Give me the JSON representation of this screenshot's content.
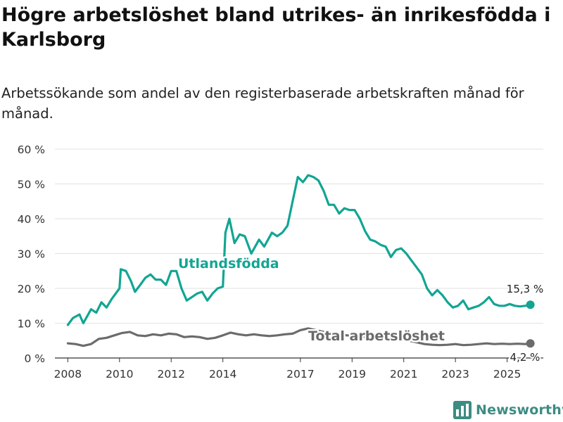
{
  "title": "Högre arbetslöshet bland utrikes- än inrikesfödda i Karlsborg",
  "subtitle": "Arbetssökande som andel av den registerbaserade arbetskraften månad för månad.",
  "brand": {
    "name": "Newsworthy",
    "icon": "bar-chart-logo-icon"
  },
  "colors": {
    "foreign_born": "#12a593",
    "total": "#6b6b6b",
    "grid": "#e2e2e2",
    "text": "#222222"
  },
  "chart_data": {
    "type": "line",
    "title": "Högre arbetslöshet bland utrikes- än inrikesfödda i Karlsborg",
    "subtitle": "Arbetssökande som andel av den registerbaserade arbetskraften månad för månad.",
    "xlabel": "",
    "ylabel": "",
    "xlim": [
      2007.5,
      2026.4
    ],
    "ylim": [
      0,
      60
    ],
    "grid": true,
    "x_ticks": [
      2008,
      2010,
      2012,
      2014,
      2017,
      2019,
      2021,
      2023,
      2025
    ],
    "x_tick_labels": [
      "2008",
      "2010",
      "2012",
      "2014",
      "2017",
      "2019",
      "2021",
      "2023",
      "2025"
    ],
    "y_ticks": [
      0,
      10,
      20,
      30,
      40,
      50,
      60
    ],
    "y_tick_labels": [
      "0 %",
      "10 %",
      "20 %",
      "30 %",
      "40 %",
      "50 %",
      "60 %"
    ],
    "series": [
      {
        "name": "Utlandsfödda",
        "label": "Utlandsfödda",
        "color": "#12a593",
        "end_label": "15,3 %",
        "points": [
          [
            2008.0,
            9.5
          ],
          [
            2008.2,
            11.5
          ],
          [
            2008.45,
            12.5
          ],
          [
            2008.6,
            10.0
          ],
          [
            2008.9,
            14.0
          ],
          [
            2009.1,
            13.0
          ],
          [
            2009.3,
            16.0
          ],
          [
            2009.5,
            14.5
          ],
          [
            2009.7,
            17.0
          ],
          [
            2010.0,
            20.0
          ],
          [
            2010.05,
            25.5
          ],
          [
            2010.25,
            25.0
          ],
          [
            2010.45,
            22.0
          ],
          [
            2010.6,
            19.0
          ],
          [
            2010.8,
            21.0
          ],
          [
            2011.0,
            23.0
          ],
          [
            2011.2,
            24.0
          ],
          [
            2011.4,
            22.5
          ],
          [
            2011.6,
            22.5
          ],
          [
            2011.8,
            21.0
          ],
          [
            2012.0,
            25.0
          ],
          [
            2012.2,
            25.0
          ],
          [
            2012.4,
            20.0
          ],
          [
            2012.6,
            16.5
          ],
          [
            2012.8,
            17.5
          ],
          [
            2013.0,
            18.5
          ],
          [
            2013.2,
            19.0
          ],
          [
            2013.4,
            16.5
          ],
          [
            2013.6,
            18.5
          ],
          [
            2013.8,
            20.0
          ],
          [
            2014.0,
            20.5
          ],
          [
            2014.1,
            36.0
          ],
          [
            2014.25,
            40.0
          ],
          [
            2014.45,
            33.0
          ],
          [
            2014.65,
            35.5
          ],
          [
            2014.85,
            35.0
          ],
          [
            2015.1,
            30.0
          ],
          [
            2015.4,
            34.0
          ],
          [
            2015.6,
            32.0
          ],
          [
            2015.9,
            36.0
          ],
          [
            2016.1,
            35.0
          ],
          [
            2016.3,
            36.0
          ],
          [
            2016.5,
            38.0
          ],
          [
            2016.7,
            45.0
          ],
          [
            2016.9,
            52.0
          ],
          [
            2017.1,
            50.5
          ],
          [
            2017.3,
            52.5
          ],
          [
            2017.5,
            52.0
          ],
          [
            2017.7,
            51.0
          ],
          [
            2017.9,
            48.0
          ],
          [
            2018.1,
            44.0
          ],
          [
            2018.3,
            44.0
          ],
          [
            2018.5,
            41.5
          ],
          [
            2018.7,
            43.0
          ],
          [
            2018.9,
            42.5
          ],
          [
            2019.1,
            42.5
          ],
          [
            2019.3,
            40.0
          ],
          [
            2019.5,
            36.5
          ],
          [
            2019.7,
            34.0
          ],
          [
            2019.9,
            33.5
          ],
          [
            2020.1,
            32.5
          ],
          [
            2020.3,
            32.0
          ],
          [
            2020.5,
            29.0
          ],
          [
            2020.7,
            31.0
          ],
          [
            2020.9,
            31.5
          ],
          [
            2021.1,
            30.0
          ],
          [
            2021.3,
            28.0
          ],
          [
            2021.5,
            26.0
          ],
          [
            2021.7,
            24.0
          ],
          [
            2021.9,
            20.0
          ],
          [
            2022.1,
            18.0
          ],
          [
            2022.3,
            19.5
          ],
          [
            2022.5,
            18.0
          ],
          [
            2022.7,
            16.0
          ],
          [
            2022.9,
            14.5
          ],
          [
            2023.1,
            15.0
          ],
          [
            2023.3,
            16.5
          ],
          [
            2023.5,
            14.0
          ],
          [
            2023.7,
            14.5
          ],
          [
            2023.9,
            15.0
          ],
          [
            2024.1,
            16.0
          ],
          [
            2024.3,
            17.5
          ],
          [
            2024.5,
            15.5
          ],
          [
            2024.7,
            15.0
          ],
          [
            2024.9,
            15.0
          ],
          [
            2025.1,
            15.5
          ],
          [
            2025.3,
            15.0
          ],
          [
            2025.5,
            14.8
          ],
          [
            2025.7,
            15.0
          ],
          [
            2025.9,
            15.3
          ]
        ]
      },
      {
        "name": "Total arbetslöshet",
        "label": "Total arbetslöshet",
        "color": "#6b6b6b",
        "end_label": "4,2 %",
        "points": [
          [
            2008.0,
            4.2
          ],
          [
            2008.3,
            4.0
          ],
          [
            2008.6,
            3.5
          ],
          [
            2008.9,
            4.0
          ],
          [
            2009.2,
            5.5
          ],
          [
            2009.5,
            5.8
          ],
          [
            2009.8,
            6.5
          ],
          [
            2010.1,
            7.2
          ],
          [
            2010.4,
            7.5
          ],
          [
            2010.7,
            6.5
          ],
          [
            2011.0,
            6.3
          ],
          [
            2011.3,
            6.8
          ],
          [
            2011.6,
            6.5
          ],
          [
            2011.9,
            7.0
          ],
          [
            2012.2,
            6.8
          ],
          [
            2012.5,
            6.0
          ],
          [
            2012.8,
            6.2
          ],
          [
            2013.1,
            6.0
          ],
          [
            2013.4,
            5.5
          ],
          [
            2013.7,
            5.8
          ],
          [
            2014.0,
            6.5
          ],
          [
            2014.3,
            7.3
          ],
          [
            2014.6,
            6.8
          ],
          [
            2014.9,
            6.5
          ],
          [
            2015.2,
            6.8
          ],
          [
            2015.5,
            6.5
          ],
          [
            2015.8,
            6.3
          ],
          [
            2016.1,
            6.5
          ],
          [
            2016.4,
            6.8
          ],
          [
            2016.7,
            7.0
          ],
          [
            2017.0,
            8.0
          ],
          [
            2017.3,
            8.5
          ],
          [
            2017.6,
            8.0
          ],
          [
            2017.9,
            7.5
          ],
          [
            2018.2,
            7.2
          ],
          [
            2018.5,
            6.8
          ],
          [
            2018.8,
            6.5
          ],
          [
            2019.1,
            6.3
          ],
          [
            2019.4,
            6.0
          ],
          [
            2019.7,
            6.5
          ],
          [
            2020.0,
            7.0
          ],
          [
            2020.3,
            6.8
          ],
          [
            2020.6,
            6.0
          ],
          [
            2020.9,
            5.5
          ],
          [
            2021.2,
            5.0
          ],
          [
            2021.5,
            4.5
          ],
          [
            2021.8,
            4.0
          ],
          [
            2022.1,
            3.8
          ],
          [
            2022.4,
            3.7
          ],
          [
            2022.7,
            3.8
          ],
          [
            2023.0,
            4.0
          ],
          [
            2023.3,
            3.7
          ],
          [
            2023.6,
            3.8
          ],
          [
            2023.9,
            4.0
          ],
          [
            2024.2,
            4.2
          ],
          [
            2024.5,
            4.0
          ],
          [
            2024.8,
            4.1
          ],
          [
            2025.1,
            4.0
          ],
          [
            2025.4,
            4.1
          ],
          [
            2025.7,
            4.0
          ],
          [
            2025.9,
            4.2
          ]
        ]
      }
    ]
  }
}
